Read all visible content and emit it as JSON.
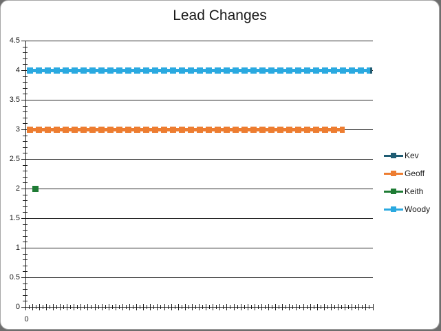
{
  "chart_data": {
    "type": "line",
    "title": "Lead Changes",
    "xlabel": "",
    "ylabel": "",
    "ylim": [
      0,
      4.5
    ],
    "ytick_interval": 0.5,
    "ytick_minor_interval": 0.1,
    "ytick_labels": [
      "4.5",
      "4",
      "3.5",
      "3",
      "2.5",
      "2",
      "1.5",
      "1",
      "0.5",
      "0"
    ],
    "xtick_label_visible": "0",
    "x_minor_tick_count": 100,
    "grid": "horizontal-only",
    "legend_position": "right",
    "series": [
      {
        "name": "Kev",
        "color": "#1f5c73",
        "value": 4,
        "start_frac": 0.005,
        "end_frac": 1.0,
        "marker": "square",
        "visible_only_at_right_end": true
      },
      {
        "name": "Geoff",
        "color": "#ed7d31",
        "value": 3,
        "start_frac": 0.005,
        "end_frac": 0.92,
        "marker": "square"
      },
      {
        "name": "Keith",
        "color": "#1e7b34",
        "value": 2,
        "point_only": true,
        "point_x_frac": 0.015,
        "marker": "square"
      },
      {
        "name": "Woody",
        "color": "#2aa9e0",
        "value": 4,
        "start_frac": 0.005,
        "end_frac": 0.993,
        "marker": "square"
      }
    ],
    "legend_order": [
      "Kev",
      "Geoff",
      "Keith",
      "Woody"
    ]
  },
  "frame": {
    "background": "#ffffff",
    "outside_color": "#6e6e6e",
    "border_color": "#a6a6a6",
    "axis_color": "#1a1a1a",
    "grid_color": "#262626",
    "text_color": "#1a1a1a"
  }
}
